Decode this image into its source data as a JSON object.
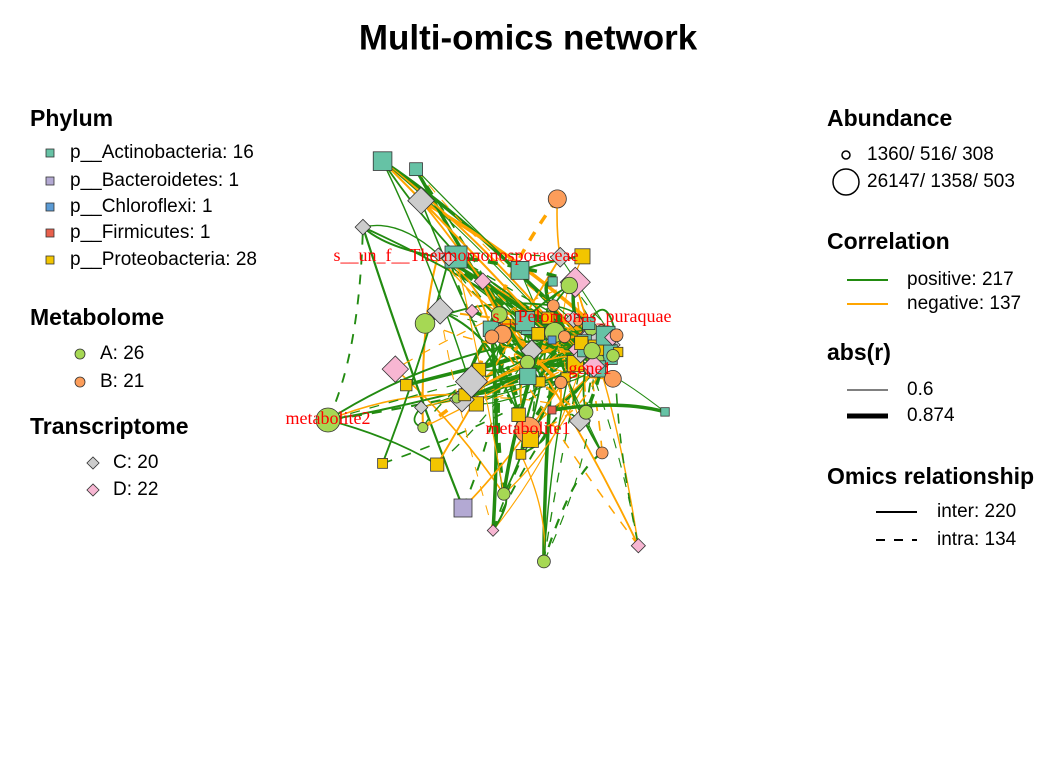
{
  "title": "Multi-omics network",
  "legends": {
    "phylum": {
      "title": "Phylum",
      "items": [
        "p__Actinobacteria: 16",
        "p__Bacteroidetes: 1",
        "p__Chloroflexi: 1",
        "p__Firmicutes: 1",
        "p__Proteobacteria: 28"
      ]
    },
    "metabolome": {
      "title": "Metabolome",
      "items": [
        "A: 26",
        "B: 21"
      ]
    },
    "transcriptome": {
      "title": "Transcriptome",
      "items": [
        "C: 20",
        "D: 22"
      ]
    },
    "abundance": {
      "title": "Abundance",
      "items": [
        "1360/ 516/ 308",
        "26147/ 1358/ 503"
      ]
    },
    "correlation": {
      "title": "Correlation",
      "items": [
        "positive: 217",
        "negative: 137"
      ]
    },
    "abs_r": {
      "title": "abs(r)",
      "items": [
        "0.6",
        "0.874"
      ]
    },
    "omics_relationship": {
      "title": "Omics relationship",
      "items": [
        "inter: 220",
        "intra: 134"
      ]
    }
  },
  "node_labels": [
    "s__un_f__Thermomonosporaceae",
    "s__Pelomonas_puraquae",
    "gene1",
    "metabolite2",
    "metabolite1"
  ]
}
